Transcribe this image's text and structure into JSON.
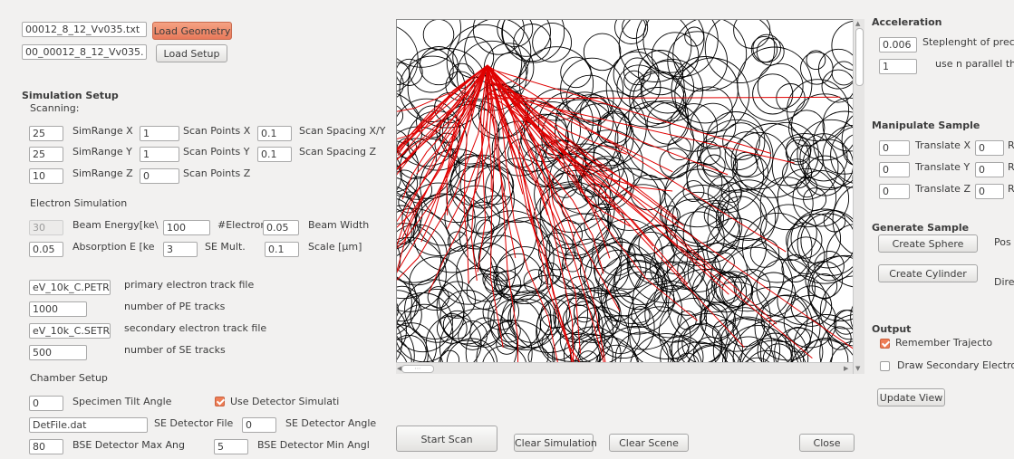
{
  "geometry": {
    "file": "00012_8_12_Vv035.txt",
    "load_label": "Load Geometry"
  },
  "setup": {
    "file": "00_00012_8_12_Vv035.",
    "load_label": "Load Setup"
  },
  "simulation_setup": {
    "title": "Simulation Setup",
    "scanning_label": "Scanning:",
    "rows": [
      {
        "range": "25",
        "range_label": "SimRange X",
        "points": "1",
        "points_label": "Scan Points X",
        "spacing": "0.1",
        "spacing_label": "Scan Spacing X/Y"
      },
      {
        "range": "25",
        "range_label": "SimRange Y",
        "points": "1",
        "points_label": "Scan Points Y",
        "spacing": "0.1",
        "spacing_label": "Scan Spacing Z"
      },
      {
        "range": "10",
        "range_label": "SimRange Z",
        "points": "0",
        "points_label": "Scan Points Z"
      }
    ]
  },
  "electron": {
    "title": "Electron Simulation",
    "beam_energy": "30",
    "beam_energy_label": "Beam Energy[ke\\",
    "electrons": "100",
    "electrons_label": "#Electrons",
    "beam_width": "0.05",
    "beam_width_label": "Beam Width",
    "absorption": "0.05",
    "absorption_label": "Absorption E [ke",
    "se_mult": "3",
    "se_mult_label": "SE Mult.",
    "scale": "0.1",
    "scale_label": "Scale [µm]"
  },
  "tracks": {
    "pe_file": "eV_10k_C.PETR",
    "pe_file_label": "primary electron track file",
    "pe_count": "1000",
    "pe_count_label": "number of PE tracks",
    "se_file": "eV_10k_C.SETR",
    "se_file_label": "secondary electron track file",
    "se_count": "500",
    "se_count_label": "number of SE tracks"
  },
  "chamber": {
    "title": "Chamber Setup",
    "tilt": "0",
    "tilt_label": "Specimen Tilt Angle",
    "use_detector_label": "Use Detector Simulati",
    "use_detector_checked": true,
    "det_file": "DetFile.dat",
    "det_file_label": "SE Detector File",
    "se_angle": "0",
    "se_angle_label": "SE Detector Angle",
    "bse_max": "80",
    "bse_max_label": "BSE Detector Max Ang",
    "bse_min": "5",
    "bse_min_label": "BSE Detector Min Angl"
  },
  "actions": {
    "start_scan": "Start Scan",
    "clear_simulation": "Clear Simulation",
    "clear_scene": "Clear Scene",
    "close": "Close"
  },
  "acceleration": {
    "title": "Acceleration",
    "step": "0.006",
    "step_label": "Steplenght of prec",
    "threads": "1",
    "threads_label": "use n parallel threa"
  },
  "manipulate": {
    "title": "Manipulate Sample",
    "rows": [
      {
        "value": "0",
        "label": "Translate X",
        "rot": "0",
        "rot_label": "R"
      },
      {
        "value": "0",
        "label": "Translate Y",
        "rot": "0",
        "rot_label": "R"
      },
      {
        "value": "0",
        "label": "Translate Z",
        "rot": "0",
        "rot_label": "R"
      }
    ]
  },
  "generate": {
    "title": "Generate Sample",
    "sphere": "Create Sphere",
    "pos_label": "Pos",
    "cylinder": "Create Cylinder",
    "dir_label": "Dire"
  },
  "output": {
    "title": "Output",
    "remember_label": "Remember Trajecto",
    "remember_checked": true,
    "draw_secondary_label": "Draw Secondary Electro",
    "draw_secondary_checked": false,
    "update_view": "Update View"
  },
  "scroll": {
    "hthumb_label": "⋯"
  },
  "colors": {
    "accent": "#ee7d55",
    "trajectory_primary": "#e00000",
    "trajectory_secondary": "#000000"
  }
}
